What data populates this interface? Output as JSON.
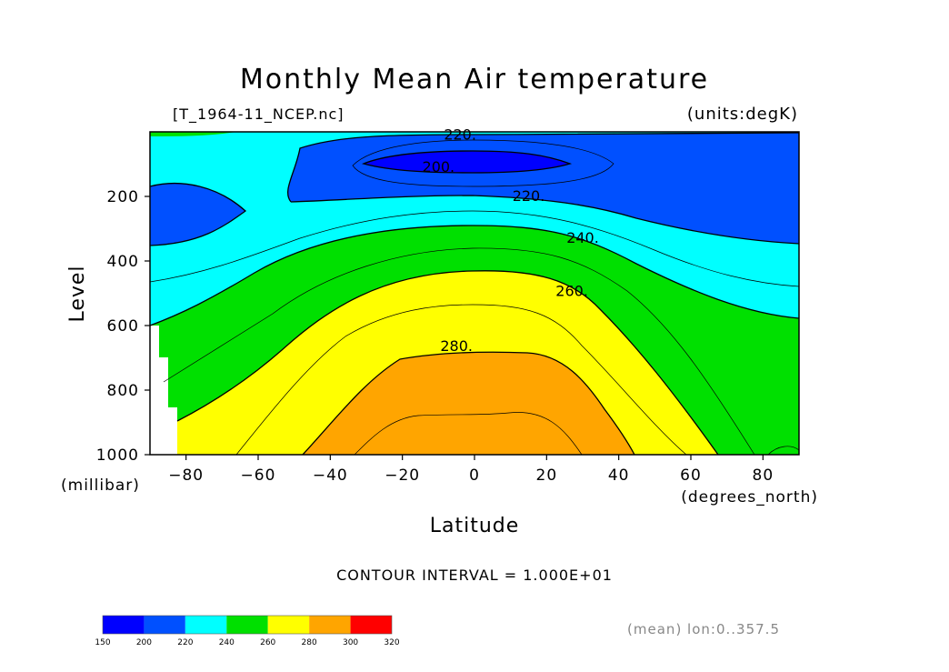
{
  "chart_data": {
    "type": "contour",
    "title": "Monthly Mean Air temperature",
    "file_label": "[T_1964-11_NCEP.nc]",
    "units_label": "(units:degK)",
    "xlabel": "Latitude",
    "xunits": "(degrees_north)",
    "ylabel": "Level",
    "yunits": "(millibar)",
    "xlim": [
      -90,
      90
    ],
    "ylim": [
      1000,
      0
    ],
    "x_ticks": [
      -80,
      -60,
      -40,
      -20,
      0,
      20,
      40,
      60,
      80
    ],
    "x_tick_labels": [
      "−80",
      "−60",
      "−40",
      "−20",
      "0",
      "20",
      "40",
      "60",
      "80"
    ],
    "y_ticks": [
      200,
      400,
      600,
      800,
      1000
    ],
    "y_tick_labels": [
      "200",
      "400",
      "600",
      "800",
      "1000"
    ],
    "contour_interval_text": "CONTOUR INTERVAL = 1.000E+01",
    "contour_labels": [
      {
        "text": "220.",
        "x": -4,
        "y": 10
      },
      {
        "text": "200.",
        "x": -10,
        "y": 110
      },
      {
        "text": "220.",
        "x": 15,
        "y": 200
      },
      {
        "text": "240.",
        "x": 30,
        "y": 330
      },
      {
        "text": "260.",
        "x": 27,
        "y": 495
      },
      {
        "text": "280.",
        "x": -5,
        "y": 665
      }
    ],
    "colorbar": {
      "levels": [
        150,
        200,
        220,
        240,
        260,
        280,
        300,
        320
      ],
      "level_labels": [
        "150",
        "200",
        "220",
        "240",
        "260",
        "280",
        "300",
        "320"
      ],
      "colors": [
        "#0000ff",
        "#0050ff",
        "#00ffff",
        "#00e000",
        "#ffff00",
        "#ffa500",
        "#ff0000"
      ]
    },
    "footer_note": "(mean) lon:0..357.5",
    "missing_color": "#ffffff"
  }
}
